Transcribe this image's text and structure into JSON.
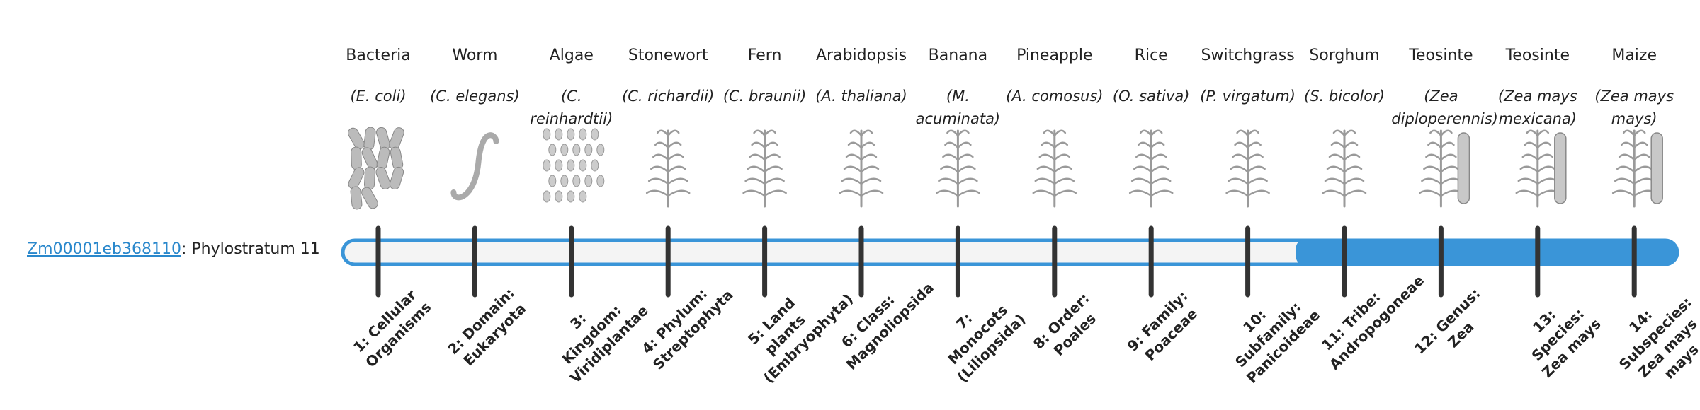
{
  "gene": {
    "id": "Zm00001eb368110",
    "label": ": Phylostratum 11",
    "phylostratum": 11
  },
  "strata": [
    {
      "name": "Bacteria",
      "species": "(E. coli)",
      "label": "1: Cellular Organisms"
    },
    {
      "name": "Worm",
      "species": "(C. elegans)",
      "label": "2: Domain: Eukaryota"
    },
    {
      "name": "Algae",
      "species": "(C. reinhardtii)",
      "label": "3: Kingdom: Viridiplantae"
    },
    {
      "name": "Stonewort",
      "species": "(C. richardii)",
      "label": "4: Phylum: Streptophyta"
    },
    {
      "name": "Fern",
      "species": "(C. braunii)",
      "label": "5: Land plants (Embryophyta)"
    },
    {
      "name": "Arabidopsis",
      "species": "(A. thaliana)",
      "label": "6: Class: Magnoliopsida"
    },
    {
      "name": "Banana",
      "species": "(M. acuminata)",
      "label": "7: Monocots (Liliopsida)"
    },
    {
      "name": "Pineapple",
      "species": "(A. comosus)",
      "label": "8: Order: Poales"
    },
    {
      "name": "Rice",
      "species": "(O. sativa)",
      "label": "9: Family: Poaceae"
    },
    {
      "name": "Switchgrass",
      "species": "(P. virgatum)",
      "label": "10: Subfamily: Panicoideae"
    },
    {
      "name": "Sorghum",
      "species": "(S. bicolor)",
      "label": "11: Tribe: Andropogoneae"
    },
    {
      "name": "Teosinte",
      "species": "(Zea diploperennis)",
      "label": "12: Genus: Zea"
    },
    {
      "name": "Teosinte",
      "species": "(Zea mays mexicana)",
      "label": "13: Species: Zea mays"
    },
    {
      "name": "Maize",
      "species": "(Zea mays mays)",
      "label": "14: Subspecies: Zea mays mays"
    }
  ]
}
